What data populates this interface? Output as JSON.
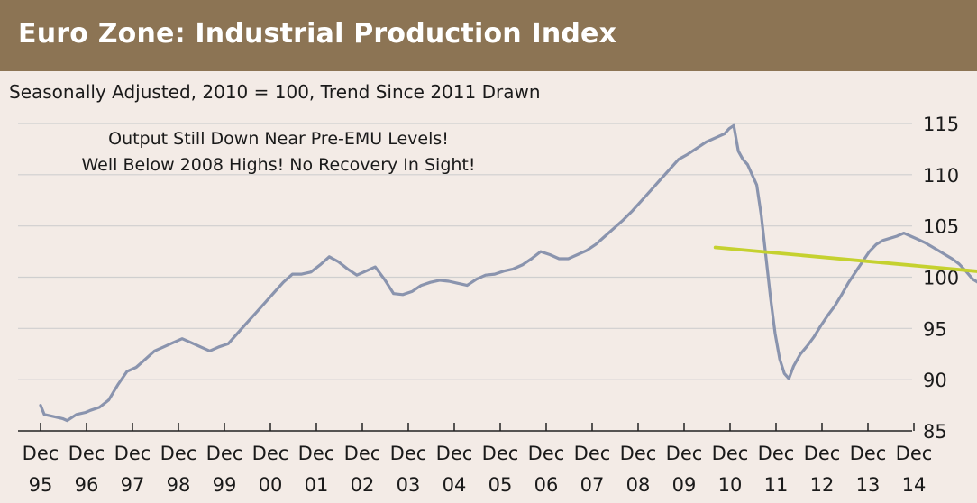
{
  "header": {
    "title": "Euro Zone:  Industrial Production Index"
  },
  "subtitle": "Seasonally Adjusted, 2010 = 100, Trend Since 2011 Drawn",
  "annotation": {
    "line1": "Output Still Down Near Pre-EMU Levels!",
    "line2": "Well Below 2008 Highs!  No Recovery In Sight!"
  },
  "colors": {
    "header_bg": "#8c7454",
    "series_line": "#8a94ae",
    "trend_line": "#c5d12f",
    "grid": "#cfcfcf",
    "background": "#f3ebe6"
  },
  "chart_data": {
    "type": "line",
    "title": "Euro Zone:  Industrial Production Index",
    "subtitle": "Seasonally Adjusted, 2010 = 100, Trend Since 2011 Drawn",
    "ylim": [
      85,
      115
    ],
    "yticks": [
      85,
      90,
      95,
      100,
      105,
      110,
      115
    ],
    "x_tick_labels": [
      [
        "Dec",
        "95"
      ],
      [
        "Dec",
        "96"
      ],
      [
        "Dec",
        "97"
      ],
      [
        "Dec",
        "98"
      ],
      [
        "Dec",
        "99"
      ],
      [
        "Dec",
        "00"
      ],
      [
        "Dec",
        "01"
      ],
      [
        "Dec",
        "02"
      ],
      [
        "Dec",
        "03"
      ],
      [
        "Dec",
        "04"
      ],
      [
        "Dec",
        "05"
      ],
      [
        "Dec",
        "06"
      ],
      [
        "Dec",
        "07"
      ],
      [
        "Dec",
        "08"
      ],
      [
        "Dec",
        "09"
      ],
      [
        "Dec",
        "10"
      ],
      [
        "Dec",
        "11"
      ],
      [
        "Dec",
        "12"
      ],
      [
        "Dec",
        "13"
      ],
      [
        "Dec",
        "14"
      ]
    ],
    "grid": true,
    "y_axis_side": "right",
    "series": [
      {
        "values": [
          [
            1995.92,
            87.5
          ],
          [
            1996.0,
            86.6
          ],
          [
            1996.2,
            86.4
          ],
          [
            1996.4,
            86.2
          ],
          [
            1996.5,
            86.0
          ],
          [
            1996.7,
            86.6
          ],
          [
            1996.9,
            86.8
          ],
          [
            1997.0,
            87.0
          ],
          [
            1997.2,
            87.3
          ],
          [
            1997.4,
            88.0
          ],
          [
            1997.6,
            89.5
          ],
          [
            1997.8,
            90.8
          ],
          [
            1998.0,
            91.2
          ],
          [
            1998.2,
            92.0
          ],
          [
            1998.4,
            92.8
          ],
          [
            1998.6,
            93.2
          ],
          [
            1998.8,
            93.6
          ],
          [
            1999.0,
            94.0
          ],
          [
            1999.2,
            93.6
          ],
          [
            1999.4,
            93.2
          ],
          [
            1999.6,
            92.8
          ],
          [
            1999.8,
            93.2
          ],
          [
            2000.0,
            93.5
          ],
          [
            2000.2,
            94.5
          ],
          [
            2000.4,
            95.5
          ],
          [
            2000.6,
            96.5
          ],
          [
            2000.8,
            97.5
          ],
          [
            2001.0,
            98.5
          ],
          [
            2001.2,
            99.5
          ],
          [
            2001.4,
            100.3
          ],
          [
            2001.6,
            100.3
          ],
          [
            2001.8,
            100.5
          ],
          [
            2002.0,
            101.2
          ],
          [
            2002.2,
            102.0
          ],
          [
            2002.4,
            101.5
          ],
          [
            2002.6,
            100.8
          ],
          [
            2002.8,
            100.2
          ],
          [
            2003.0,
            100.6
          ],
          [
            2003.2,
            101.0
          ],
          [
            2003.4,
            99.8
          ],
          [
            2003.6,
            98.4
          ],
          [
            2003.8,
            98.3
          ],
          [
            2004.0,
            98.6
          ],
          [
            2004.2,
            99.2
          ],
          [
            2004.4,
            99.5
          ],
          [
            2004.6,
            99.7
          ],
          [
            2004.8,
            99.6
          ],
          [
            2005.0,
            99.4
          ],
          [
            2005.2,
            99.2
          ],
          [
            2005.4,
            99.8
          ],
          [
            2005.6,
            100.2
          ],
          [
            2005.8,
            100.3
          ],
          [
            2006.0,
            100.6
          ],
          [
            2006.2,
            100.8
          ],
          [
            2006.4,
            101.2
          ],
          [
            2006.6,
            101.8
          ],
          [
            2006.8,
            102.5
          ],
          [
            2007.0,
            102.2
          ],
          [
            2007.2,
            101.8
          ],
          [
            2007.4,
            101.8
          ],
          [
            2007.6,
            102.2
          ],
          [
            2007.8,
            102.6
          ],
          [
            2008.0,
            103.2
          ],
          [
            2008.2,
            104.0
          ],
          [
            2008.4,
            104.8
          ],
          [
            2008.6,
            105.6
          ],
          [
            2008.8,
            106.5
          ],
          [
            2009.0,
            107.5
          ],
          [
            2009.2,
            108.5
          ],
          [
            2009.4,
            109.5
          ],
          [
            2009.6,
            110.5
          ],
          [
            2009.8,
            111.5
          ],
          [
            2010.0,
            112.0
          ],
          [
            2010.2,
            112.6
          ],
          [
            2010.4,
            113.2
          ],
          [
            2010.6,
            113.6
          ],
          [
            2010.8,
            114.0
          ],
          [
            2010.9,
            114.5
          ],
          [
            2011.0,
            114.8
          ],
          [
            2011.1,
            112.3
          ],
          [
            2011.2,
            111.5
          ],
          [
            2011.3,
            111.0
          ],
          [
            2011.4,
            110.0
          ],
          [
            2011.5,
            109.0
          ],
          [
            2011.6,
            106.0
          ],
          [
            2011.7,
            102.0
          ],
          [
            2011.8,
            98.0
          ],
          [
            2011.9,
            94.5
          ],
          [
            2012.0,
            92.0
          ],
          [
            2012.1,
            90.6
          ],
          [
            2012.2,
            90.1
          ],
          [
            2012.3,
            91.3
          ],
          [
            2012.45,
            92.5
          ],
          [
            2012.6,
            93.3
          ],
          [
            2012.75,
            94.2
          ],
          [
            2012.9,
            95.3
          ],
          [
            2013.05,
            96.3
          ],
          [
            2013.2,
            97.2
          ],
          [
            2013.35,
            98.3
          ],
          [
            2013.5,
            99.5
          ],
          [
            2013.65,
            100.5
          ],
          [
            2013.8,
            101.5
          ],
          [
            2013.95,
            102.5
          ],
          [
            2014.1,
            103.2
          ],
          [
            2014.25,
            103.6
          ],
          [
            2014.4,
            103.8
          ],
          [
            2014.55,
            104.0
          ],
          [
            2014.7,
            104.3
          ],
          [
            2014.85,
            104.0
          ],
          [
            2015.0,
            103.7
          ],
          [
            2015.15,
            103.4
          ],
          [
            2015.3,
            103.0
          ],
          [
            2015.45,
            102.6
          ],
          [
            2015.6,
            102.2
          ],
          [
            2015.75,
            101.8
          ],
          [
            2015.9,
            101.3
          ],
          [
            2016.05,
            100.6
          ],
          [
            2016.2,
            99.8
          ],
          [
            2016.35,
            99.4
          ],
          [
            2016.5,
            99.6
          ],
          [
            2016.65,
            100.0
          ],
          [
            2016.8,
            100.3
          ],
          [
            2016.95,
            100.6
          ],
          [
            2017.1,
            100.8
          ],
          [
            2017.25,
            101.0
          ],
          [
            2017.4,
            101.2
          ],
          [
            2017.55,
            101.3
          ],
          [
            2017.7,
            101.2
          ],
          [
            2017.85,
            101.3
          ],
          [
            2017.95,
            101.2
          ]
        ]
      },
      {
        "values": [
          [
            2010.6,
            102.9
          ],
          [
            2017.95,
            99.9
          ]
        ]
      }
    ]
  }
}
